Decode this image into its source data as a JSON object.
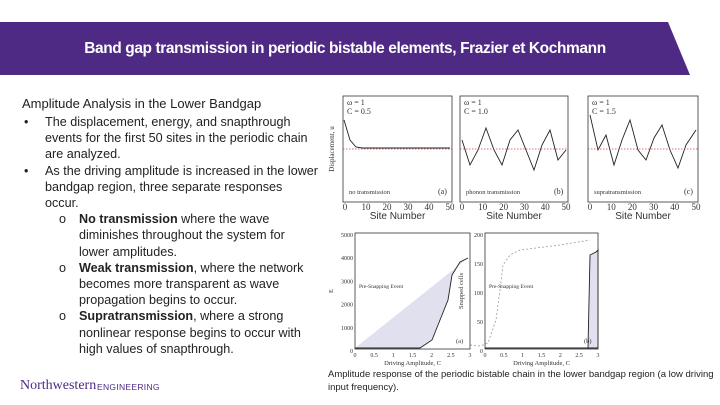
{
  "header": {
    "title": "Band gap transmission in periodic bistable elements, Frazier et Kochmann"
  },
  "body": {
    "heading": "Amplitude Analysis in the Lower Bandgap",
    "bullets": [
      {
        "marker": "•",
        "text": "The displacement, energy, and snapthrough events for the first 50 sites in the periodic chain are analyzed."
      },
      {
        "marker": "•",
        "text": "As the driving amplitude is increased in the lower bandgap region, three separate responses occur.",
        "subitems": [
          {
            "marker": "o",
            "term": "No transmission",
            "text": " where the wave diminishes throughout the system for lower amplitudes."
          },
          {
            "marker": "o",
            "term": "Weak transmission",
            "text": ", where the network becomes more transparent as wave propagation begins to occur."
          },
          {
            "marker": "o",
            "term": "Supratransmission",
            "text": ", where a strong nonlinear response begins to occur with high values of snapthrough."
          }
        ]
      }
    ]
  },
  "figure": {
    "top": {
      "y_label": "Displacement, u",
      "x_label": "Site Number",
      "xticks": [
        "0",
        "10",
        "20",
        "30",
        "40",
        "50"
      ],
      "panels": [
        {
          "omega": "ω = 1",
          "amp": "C = 0.5",
          "label": "no transmission",
          "tag": "(a)"
        },
        {
          "omega": "ω = 1",
          "amp": "C = 1.0",
          "label": "phonon transmission",
          "tag": "(b)"
        },
        {
          "omega": "ω = 1",
          "amp": "C = 1.5",
          "label": "supratransmission",
          "tag": "(c)"
        }
      ]
    },
    "bottom": {
      "x_label": "Driving Amplitude, C",
      "note": "Pre-Snapping Event",
      "xticks": [
        "0",
        "0.5",
        "1",
        "1.5",
        "2",
        "2.5",
        "3"
      ],
      "panels": [
        {
          "y_label": "E",
          "yticks": [
            "5000",
            "4000",
            "3000",
            "2000",
            "1000",
            "0"
          ],
          "tag": "(a)"
        },
        {
          "y_label": "Snapped cells",
          "yticks": [
            "200",
            "150",
            "100",
            "50",
            "0"
          ],
          "tag": "(b)"
        }
      ]
    },
    "caption": "Amplitude response of the periodic bistable chain in the lower bandgap region (a low driving input frequency)."
  },
  "footer": {
    "brand": "Northwestern",
    "unit": "ENGINEERING"
  }
}
